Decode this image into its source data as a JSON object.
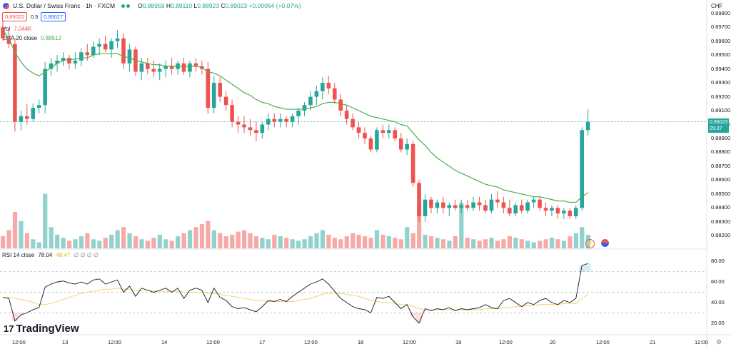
{
  "header": {
    "symbol": "U.S. Dollar / Swiss Franc · 1h · FXCM",
    "ohlc": {
      "o_label": "O",
      "o": "0.88959",
      "h_label": "H",
      "h": "0.89110",
      "l_label": "L",
      "l": "0.88923",
      "c_label": "C",
      "c": "0.89023",
      "change": "+0.00064 (+0.07%)"
    },
    "bid": "0.89022",
    "spread": "0.5",
    "ask": "0.89027",
    "currency": "CHF"
  },
  "indicators": {
    "vol_label": "Vol",
    "vol_value": "7.044K",
    "ema_label": "EMA 20 close",
    "ema_value": "0.88512",
    "rsi_label": "RSI 14 close",
    "rsi_value": "78.04",
    "rsi_ma": "48.47",
    "rsi_extra": "∅ ∅ ∅ ∅"
  },
  "price_axis": {
    "labels": [
      "0.89800",
      "0.89700",
      "0.89600",
      "0.89500",
      "0.89400",
      "0.89300",
      "0.89200",
      "0.89100",
      "0.89000",
      "0.88900",
      "0.88800",
      "0.88700",
      "0.88600",
      "0.88500",
      "0.88400",
      "0.88300",
      "0.88200"
    ],
    "last_price": "0.89023",
    "countdown": "25:37"
  },
  "rsi_axis": {
    "labels": [
      "80.00",
      "60.00",
      "40.00",
      "20.00"
    ]
  },
  "time_axis": {
    "labels": [
      "12:00",
      "13",
      "12:00",
      "14",
      "12:00",
      "17",
      "12:00",
      "18",
      "12:00",
      "19",
      "12:00",
      "20",
      "12:00",
      "21",
      "12:00"
    ]
  },
  "branding": {
    "name": "TradingView"
  },
  "colors": {
    "up": "#26a69a",
    "down": "#ef5350",
    "ema": "#4caf50",
    "rsi": "#131722",
    "rsi_ma": "#f5d26a"
  },
  "chart_data": {
    "type": "candlestick",
    "title": "U.S. Dollar / Swiss Franc · 1h · FXCM",
    "ylim": [
      0.8815,
      0.8985
    ],
    "candles": [
      [
        0.897,
        0.8975,
        0.896,
        0.8962
      ],
      [
        0.8962,
        0.8968,
        0.8955,
        0.8958
      ],
      [
        0.8958,
        0.8962,
        0.8895,
        0.8902
      ],
      [
        0.8902,
        0.891,
        0.8896,
        0.8906
      ],
      [
        0.8906,
        0.8915,
        0.89,
        0.8904
      ],
      [
        0.8904,
        0.8915,
        0.8902,
        0.8912
      ],
      [
        0.8912,
        0.8918,
        0.8908,
        0.8914
      ],
      [
        0.8914,
        0.8945,
        0.8908,
        0.894
      ],
      [
        0.894,
        0.8948,
        0.8935,
        0.8944
      ],
      [
        0.8944,
        0.895,
        0.8938,
        0.8946
      ],
      [
        0.8946,
        0.8952,
        0.8942,
        0.8948
      ],
      [
        0.8948,
        0.895,
        0.894,
        0.8944
      ],
      [
        0.8944,
        0.8952,
        0.894,
        0.8946
      ],
      [
        0.8946,
        0.8955,
        0.8942,
        0.8952
      ],
      [
        0.8952,
        0.8958,
        0.8946,
        0.895
      ],
      [
        0.895,
        0.896,
        0.8948,
        0.8956
      ],
      [
        0.8956,
        0.8962,
        0.895,
        0.8958
      ],
      [
        0.8958,
        0.8964,
        0.8952,
        0.8954
      ],
      [
        0.8954,
        0.8962,
        0.8948,
        0.896
      ],
      [
        0.896,
        0.8968,
        0.8955,
        0.8962
      ],
      [
        0.8962,
        0.8966,
        0.894,
        0.8944
      ],
      [
        0.8944,
        0.8958,
        0.8938,
        0.8954
      ],
      [
        0.8954,
        0.8956,
        0.8935,
        0.8938
      ],
      [
        0.8938,
        0.8948,
        0.8932,
        0.8944
      ],
      [
        0.8944,
        0.8948,
        0.8936,
        0.894
      ],
      [
        0.894,
        0.8946,
        0.8934,
        0.8938
      ],
      [
        0.8938,
        0.8944,
        0.8932,
        0.894
      ],
      [
        0.894,
        0.8946,
        0.8934,
        0.8942
      ],
      [
        0.8942,
        0.8948,
        0.8936,
        0.894
      ],
      [
        0.894,
        0.8946,
        0.8936,
        0.8944
      ],
      [
        0.8944,
        0.8948,
        0.8936,
        0.8938
      ],
      [
        0.8938,
        0.8946,
        0.8934,
        0.8944
      ],
      [
        0.8944,
        0.8948,
        0.8938,
        0.8942
      ],
      [
        0.8942,
        0.8946,
        0.8936,
        0.894
      ],
      [
        0.894,
        0.8945,
        0.8908,
        0.8912
      ],
      [
        0.8912,
        0.8935,
        0.8908,
        0.893
      ],
      [
        0.893,
        0.8934,
        0.8916,
        0.892
      ],
      [
        0.892,
        0.8924,
        0.891,
        0.8914
      ],
      [
        0.8914,
        0.8918,
        0.8898,
        0.8902
      ],
      [
        0.8902,
        0.8906,
        0.8894,
        0.89
      ],
      [
        0.89,
        0.8906,
        0.8894,
        0.8898
      ],
      [
        0.8898,
        0.8904,
        0.8892,
        0.8896
      ],
      [
        0.8896,
        0.8902,
        0.8888,
        0.8894
      ],
      [
        0.8894,
        0.8902,
        0.889,
        0.89
      ],
      [
        0.89,
        0.8908,
        0.8896,
        0.8904
      ],
      [
        0.8904,
        0.8908,
        0.8898,
        0.8902
      ],
      [
        0.8902,
        0.8908,
        0.8898,
        0.8904
      ],
      [
        0.8904,
        0.8906,
        0.8898,
        0.8902
      ],
      [
        0.8902,
        0.8908,
        0.8898,
        0.8906
      ],
      [
        0.8906,
        0.8912,
        0.89,
        0.891
      ],
      [
        0.891,
        0.8916,
        0.8906,
        0.8914
      ],
      [
        0.8914,
        0.8924,
        0.891,
        0.892
      ],
      [
        0.892,
        0.8928,
        0.8914,
        0.8924
      ],
      [
        0.8924,
        0.8934,
        0.8918,
        0.893
      ],
      [
        0.893,
        0.8935,
        0.8922,
        0.8926
      ],
      [
        0.8926,
        0.893,
        0.8915,
        0.8918
      ],
      [
        0.8918,
        0.8922,
        0.8906,
        0.891
      ],
      [
        0.891,
        0.8914,
        0.89,
        0.8904
      ],
      [
        0.8904,
        0.8908,
        0.8896,
        0.8898
      ],
      [
        0.8898,
        0.8902,
        0.889,
        0.8894
      ],
      [
        0.8894,
        0.8898,
        0.8886,
        0.889
      ],
      [
        0.889,
        0.8892,
        0.888,
        0.8882
      ],
      [
        0.8882,
        0.8898,
        0.888,
        0.8896
      ],
      [
        0.8896,
        0.89,
        0.889,
        0.8894
      ],
      [
        0.8894,
        0.89,
        0.889,
        0.8896
      ],
      [
        0.8896,
        0.8898,
        0.8888,
        0.889
      ],
      [
        0.889,
        0.8894,
        0.888,
        0.8882
      ],
      [
        0.8882,
        0.889,
        0.8878,
        0.8886
      ],
      [
        0.8886,
        0.8888,
        0.8855,
        0.8858
      ],
      [
        0.8858,
        0.886,
        0.883,
        0.8834
      ],
      [
        0.8834,
        0.885,
        0.883,
        0.8846
      ],
      [
        0.8846,
        0.8848,
        0.8836,
        0.884
      ],
      [
        0.884,
        0.8846,
        0.8836,
        0.8844
      ],
      [
        0.8844,
        0.8848,
        0.8836,
        0.884
      ],
      [
        0.884,
        0.8844,
        0.8834,
        0.8842
      ],
      [
        0.8842,
        0.8846,
        0.8838,
        0.884
      ],
      [
        0.884,
        0.8846,
        0.8836,
        0.8842
      ],
      [
        0.8842,
        0.8846,
        0.8838,
        0.884
      ],
      [
        0.884,
        0.8848,
        0.8838,
        0.8844
      ],
      [
        0.8844,
        0.8848,
        0.8838,
        0.8842
      ],
      [
        0.8842,
        0.8846,
        0.8836,
        0.8838
      ],
      [
        0.8838,
        0.885,
        0.8836,
        0.8846
      ],
      [
        0.8846,
        0.8852,
        0.884,
        0.8844
      ],
      [
        0.8844,
        0.8848,
        0.8836,
        0.884
      ],
      [
        0.884,
        0.8846,
        0.8834,
        0.8836
      ],
      [
        0.8836,
        0.8844,
        0.8834,
        0.8842
      ],
      [
        0.8842,
        0.8846,
        0.8836,
        0.8838
      ],
      [
        0.8838,
        0.8846,
        0.8836,
        0.8844
      ],
      [
        0.8844,
        0.8848,
        0.884,
        0.8846
      ],
      [
        0.8846,
        0.8848,
        0.8838,
        0.884
      ],
      [
        0.884,
        0.8844,
        0.8834,
        0.8838
      ],
      [
        0.8838,
        0.8842,
        0.8834,
        0.884
      ],
      [
        0.884,
        0.8842,
        0.8832,
        0.8836
      ],
      [
        0.8836,
        0.884,
        0.8832,
        0.8838
      ],
      [
        0.8838,
        0.884,
        0.8832,
        0.8834
      ],
      [
        0.8834,
        0.8842,
        0.8832,
        0.884
      ],
      [
        0.884,
        0.8898,
        0.8838,
        0.8896
      ],
      [
        0.8896,
        0.8911,
        0.8892,
        0.8902
      ]
    ],
    "ema": [
      0.8968,
      0.8962,
      0.8952,
      0.8945,
      0.894,
      0.8937,
      0.8935,
      0.8938,
      0.8941,
      0.8944,
      0.8946,
      0.8947,
      0.8947,
      0.8948,
      0.8948,
      0.895,
      0.8951,
      0.8951,
      0.8951,
      0.8951,
      0.8949,
      0.8948,
      0.8946,
      0.8945,
      0.8944,
      0.8943,
      0.8943,
      0.8942,
      0.8942,
      0.8942,
      0.8942,
      0.8942,
      0.8942,
      0.8941,
      0.8938,
      0.8937,
      0.8935,
      0.8932,
      0.8929,
      0.8926,
      0.8923,
      0.8921,
      0.8918,
      0.8916,
      0.8915,
      0.8913,
      0.8912,
      0.8911,
      0.8911,
      0.8911,
      0.8911,
      0.8912,
      0.8913,
      0.8915,
      0.8916,
      0.8916,
      0.8915,
      0.8914,
      0.8912,
      0.891,
      0.8908,
      0.8906,
      0.8905,
      0.8904,
      0.8903,
      0.8902,
      0.89,
      0.8899,
      0.8894,
      0.8889,
      0.8885,
      0.888,
      0.8876,
      0.8873,
      0.887,
      0.8867,
      0.8865,
      0.8863,
      0.8861,
      0.8859,
      0.8857,
      0.8856,
      0.8855,
      0.8853,
      0.8852,
      0.8851,
      0.885,
      0.8849,
      0.8848,
      0.8848,
      0.8847,
      0.8846,
      0.8845,
      0.8845,
      0.8844,
      0.8844,
      0.8848,
      0.8851
    ],
    "volume": [
      8,
      12,
      24,
      18,
      10,
      6,
      4,
      36,
      14,
      9,
      7,
      5,
      6,
      8,
      10,
      6,
      5,
      7,
      9,
      12,
      14,
      10,
      8,
      6,
      5,
      7,
      9,
      6,
      5,
      8,
      10,
      12,
      14,
      16,
      18,
      12,
      10,
      8,
      9,
      11,
      12,
      10,
      8,
      7,
      6,
      9,
      8,
      7,
      6,
      5,
      6,
      8,
      10,
      12,
      9,
      7,
      6,
      8,
      10,
      9,
      8,
      7,
      12,
      9,
      8,
      7,
      6,
      14,
      10,
      30,
      9,
      8,
      7,
      6,
      5,
      8,
      30,
      7,
      6,
      5,
      6,
      7,
      5,
      6,
      8,
      7,
      6,
      5,
      4,
      5,
      6,
      7,
      6,
      5,
      8,
      10,
      14,
      9
    ],
    "rsi": [
      45,
      44,
      22,
      28,
      30,
      33,
      35,
      55,
      58,
      60,
      61,
      59,
      58,
      60,
      58,
      62,
      63,
      58,
      60,
      62,
      50,
      56,
      46,
      54,
      52,
      50,
      52,
      54,
      50,
      54,
      44,
      52,
      54,
      52,
      40,
      54,
      45,
      42,
      36,
      34,
      35,
      33,
      31,
      36,
      42,
      41,
      43,
      41,
      46,
      50,
      54,
      58,
      60,
      63,
      58,
      51,
      44,
      40,
      36,
      34,
      33,
      30,
      45,
      44,
      46,
      40,
      34,
      38,
      26,
      20,
      34,
      32,
      34,
      33,
      35,
      32,
      34,
      33,
      34,
      35,
      38,
      35,
      34,
      42,
      44,
      40,
      36,
      40,
      38,
      42,
      44,
      40,
      38,
      42,
      40,
      44,
      76,
      78
    ],
    "rsi_ma": [
      45,
      45,
      44,
      43,
      42,
      40,
      38,
      38,
      39,
      41,
      43,
      45,
      47,
      49,
      50,
      51,
      52,
      53,
      53,
      54,
      53,
      53,
      52,
      52,
      52,
      51,
      51,
      51,
      51,
      51,
      50,
      50,
      50,
      50,
      49,
      49,
      48,
      47,
      46,
      45,
      44,
      43,
      42,
      42,
      41,
      41,
      41,
      41,
      41,
      42,
      43,
      44,
      46,
      48,
      49,
      49,
      49,
      48,
      47,
      46,
      44,
      42,
      41,
      40,
      40,
      39,
      38,
      38,
      36,
      34,
      33,
      33,
      33,
      33,
      33,
      33,
      33,
      33,
      33,
      33,
      34,
      34,
      34,
      35,
      35,
      36,
      36,
      37,
      37,
      38,
      38,
      38,
      38,
      39,
      39,
      39,
      44,
      48
    ],
    "rsi_levels": [
      70,
      50,
      30
    ],
    "rsi_ylim": [
      10,
      90
    ]
  }
}
